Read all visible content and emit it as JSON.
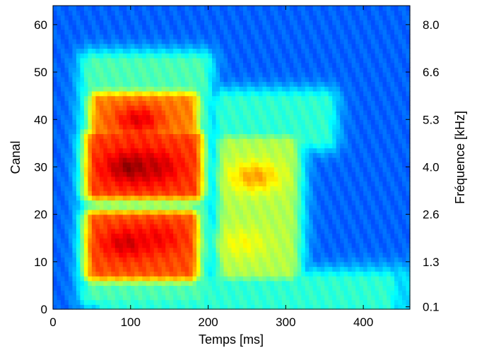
{
  "chart_data": {
    "type": "heatmap",
    "title": "",
    "xlabel": "Temps [ms]",
    "ylabel": "Canal",
    "y2label": "Fréquence [kHz]",
    "xlim": [
      0,
      460
    ],
    "ylim": [
      0,
      64
    ],
    "x_ticks": [
      0,
      100,
      200,
      300,
      400
    ],
    "y_ticks": [
      0,
      10,
      20,
      30,
      40,
      50,
      60
    ],
    "y2_ticks": [
      {
        "channel": 0.5,
        "label": "0.1"
      },
      {
        "channel": 10,
        "label": "1.3"
      },
      {
        "channel": 20,
        "label": "2.6"
      },
      {
        "channel": 30,
        "label": "4.0"
      },
      {
        "channel": 40,
        "label": "5.3"
      },
      {
        "channel": 50,
        "label": "6.6"
      },
      {
        "channel": 60,
        "label": "8.0"
      }
    ],
    "colormap": "jet",
    "background_level": 0.22,
    "regions": [
      {
        "name": "formant-low",
        "t": [
          55,
          175
        ],
        "ch": [
          8,
          19
        ],
        "level": 0.8
      },
      {
        "name": "formant-mid",
        "t": [
          55,
          180
        ],
        "ch": [
          25,
          36
        ],
        "level": 0.82
      },
      {
        "name": "formant-high",
        "t": [
          60,
          175
        ],
        "ch": [
          36,
          44
        ],
        "level": 0.75
      },
      {
        "name": "band-mid-wide",
        "t": [
          50,
          190
        ],
        "ch": [
          3,
          52
        ],
        "level": 0.45
      },
      {
        "name": "second-syllable",
        "t": [
          225,
          305
        ],
        "ch": [
          8,
          35
        ],
        "level": 0.55
      },
      {
        "name": "second-upper",
        "t": [
          220,
          350
        ],
        "ch": [
          36,
          44
        ],
        "level": 0.42
      },
      {
        "name": "low-tail",
        "t": [
          70,
          430
        ],
        "ch": [
          1,
          6
        ],
        "level": 0.42
      },
      {
        "name": "low-tail-end",
        "t": [
          380,
          460
        ],
        "ch": [
          1,
          7
        ],
        "level": 0.34
      }
    ],
    "peaks": [
      {
        "t": 100,
        "ch": 30,
        "level": 0.98
      },
      {
        "t": 130,
        "ch": 30,
        "level": 0.93
      },
      {
        "t": 95,
        "ch": 14,
        "level": 0.92
      },
      {
        "t": 135,
        "ch": 15,
        "level": 0.88
      },
      {
        "t": 110,
        "ch": 40,
        "level": 0.9
      },
      {
        "t": 260,
        "ch": 28,
        "level": 0.72
      },
      {
        "t": 245,
        "ch": 14,
        "level": 0.62
      }
    ],
    "grid": false,
    "legend": "none"
  }
}
